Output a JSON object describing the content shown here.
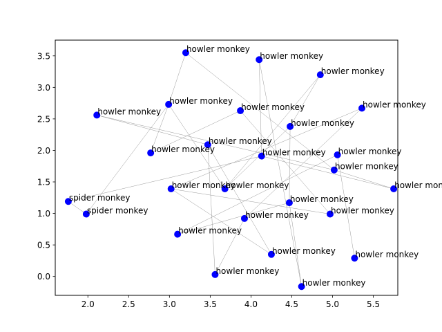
{
  "chart_data": {
    "type": "scatter",
    "title": "",
    "xlabel": "",
    "ylabel": "",
    "xlim": [
      1.6,
      5.8
    ],
    "ylim": [
      -0.3,
      3.75
    ],
    "xticks": [
      2.0,
      2.5,
      3.0,
      3.5,
      4.0,
      4.5,
      5.0,
      5.5
    ],
    "xtick_labels": [
      "2.0",
      "2.5",
      "3.0",
      "3.5",
      "4.0",
      "4.5",
      "5.0",
      "5.5"
    ],
    "yticks": [
      0.0,
      0.5,
      1.0,
      1.5,
      2.0,
      2.5,
      3.0,
      3.5
    ],
    "ytick_labels": [
      "0.0",
      "0.5",
      "1.0",
      "1.5",
      "2.0",
      "2.5",
      "3.0",
      "3.5"
    ],
    "grid": false,
    "marker_color": "#0000ff",
    "edge_color": "#999999",
    "points": [
      {
        "x": 3.2,
        "y": 3.55,
        "label": "howler monkey"
      },
      {
        "x": 4.1,
        "y": 3.44,
        "label": "howler monkey"
      },
      {
        "x": 4.85,
        "y": 3.2,
        "label": "howler monkey"
      },
      {
        "x": 2.99,
        "y": 2.73,
        "label": "howler monkey"
      },
      {
        "x": 5.36,
        "y": 2.67,
        "label": "howler monkey"
      },
      {
        "x": 2.11,
        "y": 2.56,
        "label": "howler monkey"
      },
      {
        "x": 3.87,
        "y": 2.63,
        "label": "howler monkey"
      },
      {
        "x": 4.48,
        "y": 2.38,
        "label": "howler monkey"
      },
      {
        "x": 3.47,
        "y": 2.09,
        "label": "howler monkey"
      },
      {
        "x": 2.77,
        "y": 1.96,
        "label": "howler monkey"
      },
      {
        "x": 4.13,
        "y": 1.91,
        "label": "howler monkey"
      },
      {
        "x": 5.06,
        "y": 1.93,
        "label": "howler monkey"
      },
      {
        "x": 5.02,
        "y": 1.69,
        "label": "howler monkey"
      },
      {
        "x": 3.02,
        "y": 1.39,
        "label": "howler monkey"
      },
      {
        "x": 3.68,
        "y": 1.39,
        "label": "howler monkey"
      },
      {
        "x": 5.75,
        "y": 1.39,
        "label": "howler monkey"
      },
      {
        "x": 4.47,
        "y": 1.17,
        "label": "howler monkey"
      },
      {
        "x": 4.97,
        "y": 0.99,
        "label": "howler monkey"
      },
      {
        "x": 3.92,
        "y": 0.92,
        "label": "howler monkey"
      },
      {
        "x": 3.1,
        "y": 0.67,
        "label": "howler monkey"
      },
      {
        "x": 4.25,
        "y": 0.35,
        "label": "howler monkey"
      },
      {
        "x": 5.27,
        "y": 0.29,
        "label": "howler monkey"
      },
      {
        "x": 3.56,
        "y": 0.03,
        "label": "howler monkey"
      },
      {
        "x": 4.62,
        "y": -0.16,
        "label": "howler monkey"
      },
      {
        "x": 1.76,
        "y": 1.19,
        "label": "spider monkey"
      },
      {
        "x": 1.98,
        "y": 0.99,
        "label": "spider monkey"
      }
    ],
    "edges": [
      [
        0,
        3
      ],
      [
        0,
        12
      ],
      [
        1,
        10
      ],
      [
        1,
        23
      ],
      [
        2,
        7
      ],
      [
        2,
        14
      ],
      [
        3,
        9
      ],
      [
        3,
        14
      ],
      [
        3,
        25
      ],
      [
        4,
        13
      ],
      [
        4,
        18
      ],
      [
        5,
        8
      ],
      [
        5,
        12
      ],
      [
        6,
        9
      ],
      [
        6,
        17
      ],
      [
        7,
        14
      ],
      [
        7,
        16
      ],
      [
        8,
        20
      ],
      [
        8,
        22
      ],
      [
        10,
        15
      ],
      [
        10,
        24
      ],
      [
        11,
        19
      ],
      [
        11,
        21
      ],
      [
        12,
        15
      ],
      [
        13,
        17
      ],
      [
        13,
        20
      ],
      [
        16,
        19
      ],
      [
        16,
        23
      ],
      [
        18,
        22
      ],
      [
        24,
        25
      ]
    ]
  }
}
